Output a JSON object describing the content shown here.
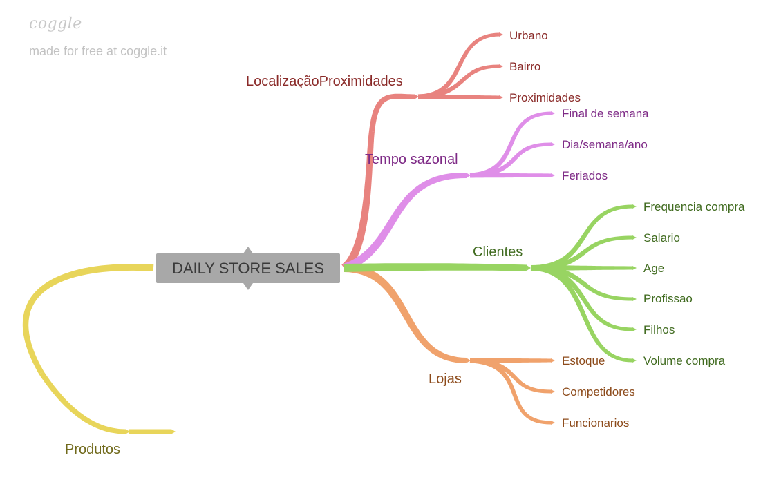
{
  "branding": {
    "logo": "coggle",
    "tagline": "made for free at coggle.it"
  },
  "central": {
    "title": "DAILY STORE SALES"
  },
  "colors": {
    "localizacao": "#e8837f",
    "localizacao_text": "#8a2a28",
    "tempo": "#df8ee8",
    "tempo_text": "#7e2a86",
    "clientes": "#98d462",
    "clientes_text": "#3f6a1e",
    "lojas": "#f0a26c",
    "lojas_text": "#8c4a1a",
    "produtos": "#e8d55a",
    "produtos_text": "#716a1c",
    "central_bg": "#a8a8a8",
    "central_text": "#3a3a3a"
  },
  "branches": {
    "localizacao": {
      "label": "LocalizaçãoProximidades",
      "items": [
        "Urbano",
        "Bairro",
        "Proximidades"
      ]
    },
    "tempo": {
      "label": "Tempo sazonal",
      "items": [
        "Final de semana",
        "Dia/semana/ano",
        "Feriados"
      ]
    },
    "clientes": {
      "label": "Clientes",
      "items": [
        "Frequencia compra",
        "Salario",
        "Age",
        "Profissao",
        "Filhos",
        "Volume compra"
      ]
    },
    "lojas": {
      "label": "Lojas",
      "items": [
        "Estoque",
        "Competidores",
        "Funcionarios"
      ]
    },
    "produtos": {
      "label": "Produtos",
      "items": []
    }
  }
}
